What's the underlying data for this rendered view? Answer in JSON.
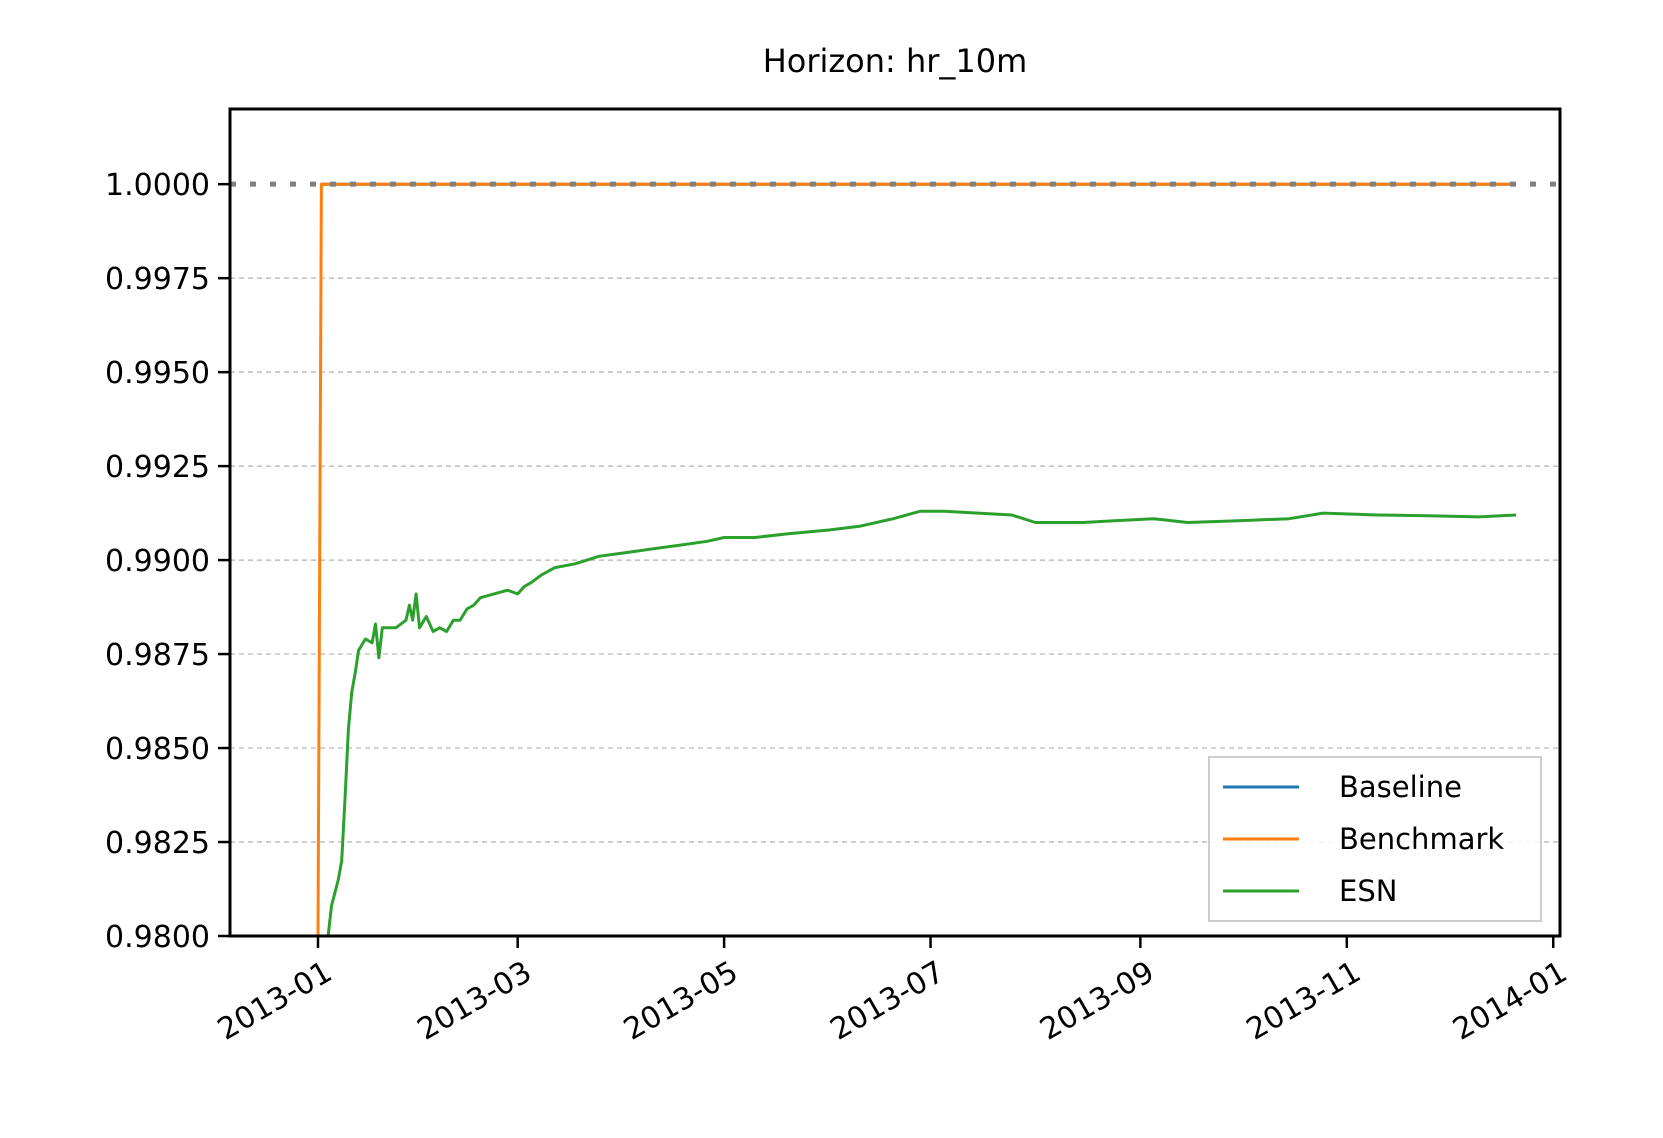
{
  "chart_data": {
    "type": "line",
    "title": "Horizon: hr_10m",
    "xlabel": "",
    "ylabel": "",
    "xlim": [
      "2012-12-06",
      "2014-01-03"
    ],
    "ylim": [
      0.98,
      1.002
    ],
    "x_ticks": [
      "2013-01",
      "2013-03",
      "2013-05",
      "2013-07",
      "2013-09",
      "2013-11",
      "2014-01"
    ],
    "x_tick_dates": [
      "2013-01-01",
      "2013-03-01",
      "2013-05-01",
      "2013-07-01",
      "2013-09-01",
      "2013-11-01",
      "2014-01-01"
    ],
    "y_ticks": [
      "0.9800",
      "0.9825",
      "0.9850",
      "0.9875",
      "0.9900",
      "0.9925",
      "0.9950",
      "0.9975",
      "1.0000"
    ],
    "grid": "y-dashed",
    "reference_line": {
      "y": 1.0,
      "style": "dotted",
      "color": "#7f7f7f"
    },
    "legend_position": "lower-right",
    "series": [
      {
        "name": "Baseline",
        "color": "#1f77b4",
        "points": [
          [
            "2013-01-02",
            1.0
          ],
          [
            "2013-12-21",
            1.0
          ]
        ]
      },
      {
        "name": "Benchmark",
        "color": "#ff7f0e",
        "points": [
          [
            "2013-01-01",
            0.98
          ],
          [
            "2013-01-02",
            1.0
          ],
          [
            "2013-12-21",
            1.0
          ]
        ]
      },
      {
        "name": "ESN",
        "color": "#2ca02c",
        "points": [
          [
            "2013-01-04",
            0.98
          ],
          [
            "2013-01-05",
            0.9808
          ],
          [
            "2013-01-07",
            0.9815
          ],
          [
            "2013-01-08",
            0.982
          ],
          [
            "2013-01-09",
            0.9837
          ],
          [
            "2013-01-10",
            0.9855
          ],
          [
            "2013-01-11",
            0.9865
          ],
          [
            "2013-01-12",
            0.987
          ],
          [
            "2013-01-13",
            0.9876
          ],
          [
            "2013-01-15",
            0.9879
          ],
          [
            "2013-01-17",
            0.9878
          ],
          [
            "2013-01-18",
            0.9883
          ],
          [
            "2013-01-19",
            0.9874
          ],
          [
            "2013-01-20",
            0.9882
          ],
          [
            "2013-01-24",
            0.9882
          ],
          [
            "2013-01-27",
            0.9884
          ],
          [
            "2013-01-28",
            0.9888
          ],
          [
            "2013-01-29",
            0.9884
          ],
          [
            "2013-01-30",
            0.9891
          ],
          [
            "2013-01-31",
            0.9882
          ],
          [
            "2013-02-02",
            0.9885
          ],
          [
            "2013-02-04",
            0.9881
          ],
          [
            "2013-02-06",
            0.9882
          ],
          [
            "2013-02-08",
            0.9881
          ],
          [
            "2013-02-10",
            0.9884
          ],
          [
            "2013-02-12",
            0.9884
          ],
          [
            "2013-02-14",
            0.9887
          ],
          [
            "2013-02-16",
            0.9888
          ],
          [
            "2013-02-18",
            0.989
          ],
          [
            "2013-02-22",
            0.9891
          ],
          [
            "2013-02-26",
            0.9892
          ],
          [
            "2013-03-01",
            0.9891
          ],
          [
            "2013-03-03",
            0.9893
          ],
          [
            "2013-03-05",
            0.9894
          ],
          [
            "2013-03-08",
            0.9896
          ],
          [
            "2013-03-12",
            0.9898
          ],
          [
            "2013-03-18",
            0.9899
          ],
          [
            "2013-03-25",
            0.9901
          ],
          [
            "2013-04-02",
            0.9902
          ],
          [
            "2013-04-10",
            0.9903
          ],
          [
            "2013-04-18",
            0.9904
          ],
          [
            "2013-04-26",
            0.9905
          ],
          [
            "2013-05-01",
            0.9906
          ],
          [
            "2013-05-10",
            0.9906
          ],
          [
            "2013-05-20",
            0.9907
          ],
          [
            "2013-06-01",
            0.9908
          ],
          [
            "2013-06-10",
            0.9909
          ],
          [
            "2013-06-20",
            0.9911
          ],
          [
            "2013-06-28",
            0.9913
          ],
          [
            "2013-07-05",
            0.9913
          ],
          [
            "2013-07-15",
            0.99125
          ],
          [
            "2013-07-25",
            0.9912
          ],
          [
            "2013-08-01",
            0.991
          ],
          [
            "2013-08-15",
            0.991
          ],
          [
            "2013-08-25",
            0.99105
          ],
          [
            "2013-09-05",
            0.9911
          ],
          [
            "2013-09-15",
            0.991
          ],
          [
            "2013-10-01",
            0.99105
          ],
          [
            "2013-10-15",
            0.9911
          ],
          [
            "2013-10-25",
            0.99125
          ],
          [
            "2013-11-10",
            0.9912
          ],
          [
            "2013-11-25",
            0.99118
          ],
          [
            "2013-12-10",
            0.99115
          ],
          [
            "2013-12-21",
            0.9912
          ]
        ]
      }
    ]
  }
}
